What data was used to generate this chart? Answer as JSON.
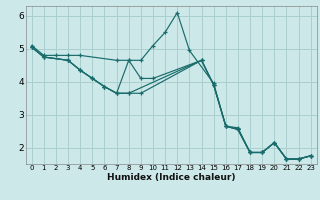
{
  "xlabel": "Humidex (Indice chaleur)",
  "bg_color": "#cce8e8",
  "grid_color": "#aacfcf",
  "line_color": "#1a6b6b",
  "xlim": [
    -0.5,
    23.5
  ],
  "ylim": [
    1.5,
    6.3
  ],
  "yticks": [
    2,
    3,
    4,
    5,
    6
  ],
  "xticks": [
    0,
    1,
    2,
    3,
    4,
    5,
    6,
    7,
    8,
    9,
    10,
    11,
    12,
    13,
    14,
    15,
    16,
    17,
    18,
    19,
    20,
    21,
    22,
    23
  ],
  "series": [
    {
      "x": [
        0,
        1,
        2,
        3,
        4,
        7,
        8,
        9,
        10,
        11,
        12,
        13,
        15,
        16,
        17,
        18,
        19,
        20,
        21,
        22,
        23
      ],
      "y": [
        5.1,
        4.8,
        4.8,
        4.8,
        4.8,
        4.65,
        4.65,
        4.65,
        5.1,
        5.5,
        6.1,
        4.95,
        3.95,
        2.65,
        2.6,
        1.85,
        1.85,
        2.15,
        1.65,
        1.65,
        1.75
      ]
    },
    {
      "x": [
        0,
        1,
        3,
        4,
        5,
        6,
        7,
        8,
        9,
        10,
        14,
        15,
        16,
        17,
        18,
        19,
        20,
        21,
        22,
        23
      ],
      "y": [
        5.05,
        4.75,
        4.65,
        4.35,
        4.1,
        3.85,
        3.65,
        4.65,
        4.1,
        4.1,
        4.65,
        3.9,
        2.65,
        2.55,
        1.85,
        1.85,
        2.15,
        1.65,
        1.65,
        1.75
      ]
    },
    {
      "x": [
        0,
        1,
        3,
        4,
        5,
        6,
        7,
        8,
        9,
        14,
        15,
        16,
        17,
        18,
        19,
        20,
        21,
        22,
        23
      ],
      "y": [
        5.05,
        4.75,
        4.65,
        4.35,
        4.1,
        3.85,
        3.65,
        3.65,
        3.65,
        4.65,
        3.9,
        2.65,
        2.55,
        1.85,
        1.85,
        2.15,
        1.65,
        1.65,
        1.75
      ]
    },
    {
      "x": [
        0,
        1,
        3,
        4,
        5,
        6,
        7,
        8,
        14,
        15,
        16,
        17,
        18,
        19,
        20,
        21,
        22,
        23
      ],
      "y": [
        5.05,
        4.75,
        4.65,
        4.35,
        4.1,
        3.85,
        3.65,
        3.65,
        4.65,
        3.9,
        2.65,
        2.55,
        1.85,
        1.85,
        2.15,
        1.65,
        1.65,
        1.75
      ]
    }
  ]
}
